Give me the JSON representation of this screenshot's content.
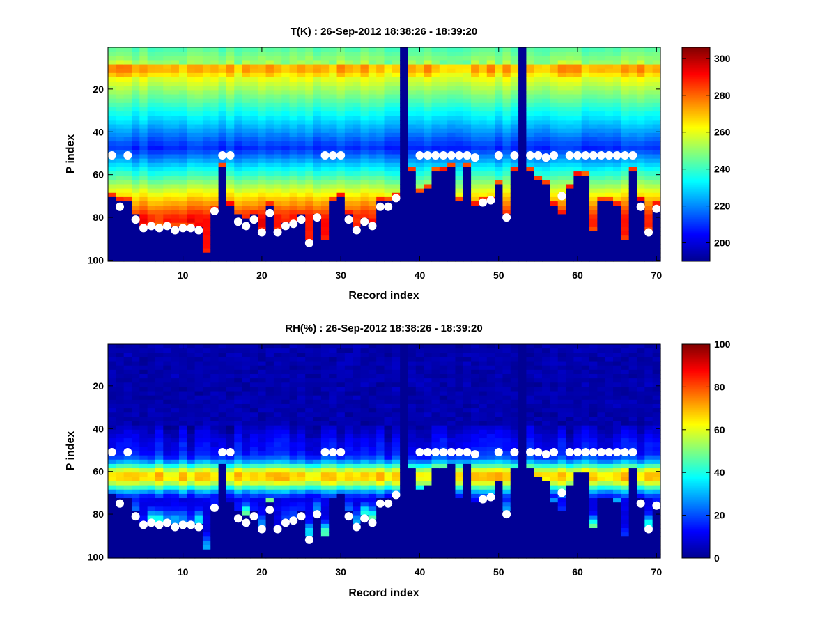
{
  "chart_data": [
    {
      "type": "heatmap",
      "title": "T(K) : 26-Sep-2012 18:38:26 - 18:39:20",
      "xlabel": "Record index",
      "ylabel": "P index",
      "xlim": [
        0.5,
        70.5
      ],
      "ylim": [
        0.5,
        100.5
      ],
      "y_reversed": true,
      "x_ticks": [
        10,
        20,
        30,
        40,
        50,
        60,
        70
      ],
      "y_ticks": [
        20,
        40,
        60,
        80,
        100
      ],
      "colormap": "jet",
      "colorbar": {
        "min": 190,
        "max": 306,
        "ticks": [
          200,
          220,
          240,
          260,
          280,
          300
        ]
      },
      "grid": false,
      "missing_records": [
        38,
        53
      ]
    },
    {
      "type": "heatmap",
      "title": "RH(%) : 26-Sep-2012 18:38:26 - 18:39:20",
      "xlabel": "Record index",
      "ylabel": "P index",
      "xlim": [
        0.5,
        70.5
      ],
      "ylim": [
        0.5,
        100.5
      ],
      "y_reversed": true,
      "x_ticks": [
        10,
        20,
        30,
        40,
        50,
        60,
        70
      ],
      "y_ticks": [
        20,
        40,
        60,
        80,
        100
      ],
      "colormap": "jet",
      "colorbar": {
        "min": 0,
        "max": 100,
        "ticks": [
          0,
          20,
          40,
          60,
          80,
          100
        ]
      },
      "grid": false,
      "missing_records": [
        38,
        53
      ]
    }
  ],
  "surface_index": [
    72,
    74,
    74,
    80,
    85,
    85,
    85,
    85,
    85,
    85,
    86,
    85,
    98,
    77,
    58,
    76,
    80,
    82,
    80,
    87,
    76,
    87,
    84,
    83,
    80,
    91,
    80,
    91,
    73,
    72,
    80,
    86,
    82,
    84,
    74,
    74,
    71,
    98,
    60,
    69,
    67,
    60,
    59,
    58,
    73,
    58,
    75,
    74,
    73,
    65,
    80,
    60,
    60,
    59,
    63,
    65,
    75,
    79,
    68,
    62,
    62,
    88,
    73,
    74,
    75,
    92,
    60,
    74,
    87,
    75
  ],
  "marker_points": [
    {
      "x": 1,
      "y": 51
    },
    {
      "x": 2,
      "y": 75
    },
    {
      "x": 3,
      "y": 51
    },
    {
      "x": 4,
      "y": 81
    },
    {
      "x": 5,
      "y": 85
    },
    {
      "x": 6,
      "y": 84
    },
    {
      "x": 7,
      "y": 85
    },
    {
      "x": 8,
      "y": 84
    },
    {
      "x": 9,
      "y": 86
    },
    {
      "x": 10,
      "y": 85
    },
    {
      "x": 11,
      "y": 85
    },
    {
      "x": 12,
      "y": 86
    },
    {
      "x": 14,
      "y": 77
    },
    {
      "x": 15,
      "y": 51
    },
    {
      "x": 16,
      "y": 51
    },
    {
      "x": 17,
      "y": 82
    },
    {
      "x": 18,
      "y": 84
    },
    {
      "x": 19,
      "y": 81
    },
    {
      "x": 20,
      "y": 87
    },
    {
      "x": 21,
      "y": 78
    },
    {
      "x": 22,
      "y": 87
    },
    {
      "x": 23,
      "y": 84
    },
    {
      "x": 24,
      "y": 83
    },
    {
      "x": 25,
      "y": 81
    },
    {
      "x": 26,
      "y": 92
    },
    {
      "x": 27,
      "y": 80
    },
    {
      "x": 28,
      "y": 51
    },
    {
      "x": 29,
      "y": 51
    },
    {
      "x": 30,
      "y": 51
    },
    {
      "x": 31,
      "y": 81
    },
    {
      "x": 32,
      "y": 86
    },
    {
      "x": 33,
      "y": 82
    },
    {
      "x": 34,
      "y": 84
    },
    {
      "x": 35,
      "y": 75
    },
    {
      "x": 36,
      "y": 75
    },
    {
      "x": 37,
      "y": 71
    },
    {
      "x": 40,
      "y": 51
    },
    {
      "x": 41,
      "y": 51
    },
    {
      "x": 42,
      "y": 51
    },
    {
      "x": 43,
      "y": 51
    },
    {
      "x": 44,
      "y": 51
    },
    {
      "x": 45,
      "y": 51
    },
    {
      "x": 46,
      "y": 51
    },
    {
      "x": 47,
      "y": 52
    },
    {
      "x": 48,
      "y": 73
    },
    {
      "x": 49,
      "y": 72
    },
    {
      "x": 50,
      "y": 51
    },
    {
      "x": 51,
      "y": 80
    },
    {
      "x": 52,
      "y": 51
    },
    {
      "x": 54,
      "y": 51
    },
    {
      "x": 55,
      "y": 51
    },
    {
      "x": 56,
      "y": 52
    },
    {
      "x": 57,
      "y": 51
    },
    {
      "x": 58,
      "y": 70
    },
    {
      "x": 59,
      "y": 51
    },
    {
      "x": 60,
      "y": 51
    },
    {
      "x": 61,
      "y": 51
    },
    {
      "x": 62,
      "y": 51
    },
    {
      "x": 63,
      "y": 51
    },
    {
      "x": 64,
      "y": 51
    },
    {
      "x": 65,
      "y": 51
    },
    {
      "x": 66,
      "y": 51
    },
    {
      "x": 67,
      "y": 51
    },
    {
      "x": 68,
      "y": 75
    },
    {
      "x": 69,
      "y": 87
    },
    {
      "x": 70,
      "y": 76
    }
  ]
}
